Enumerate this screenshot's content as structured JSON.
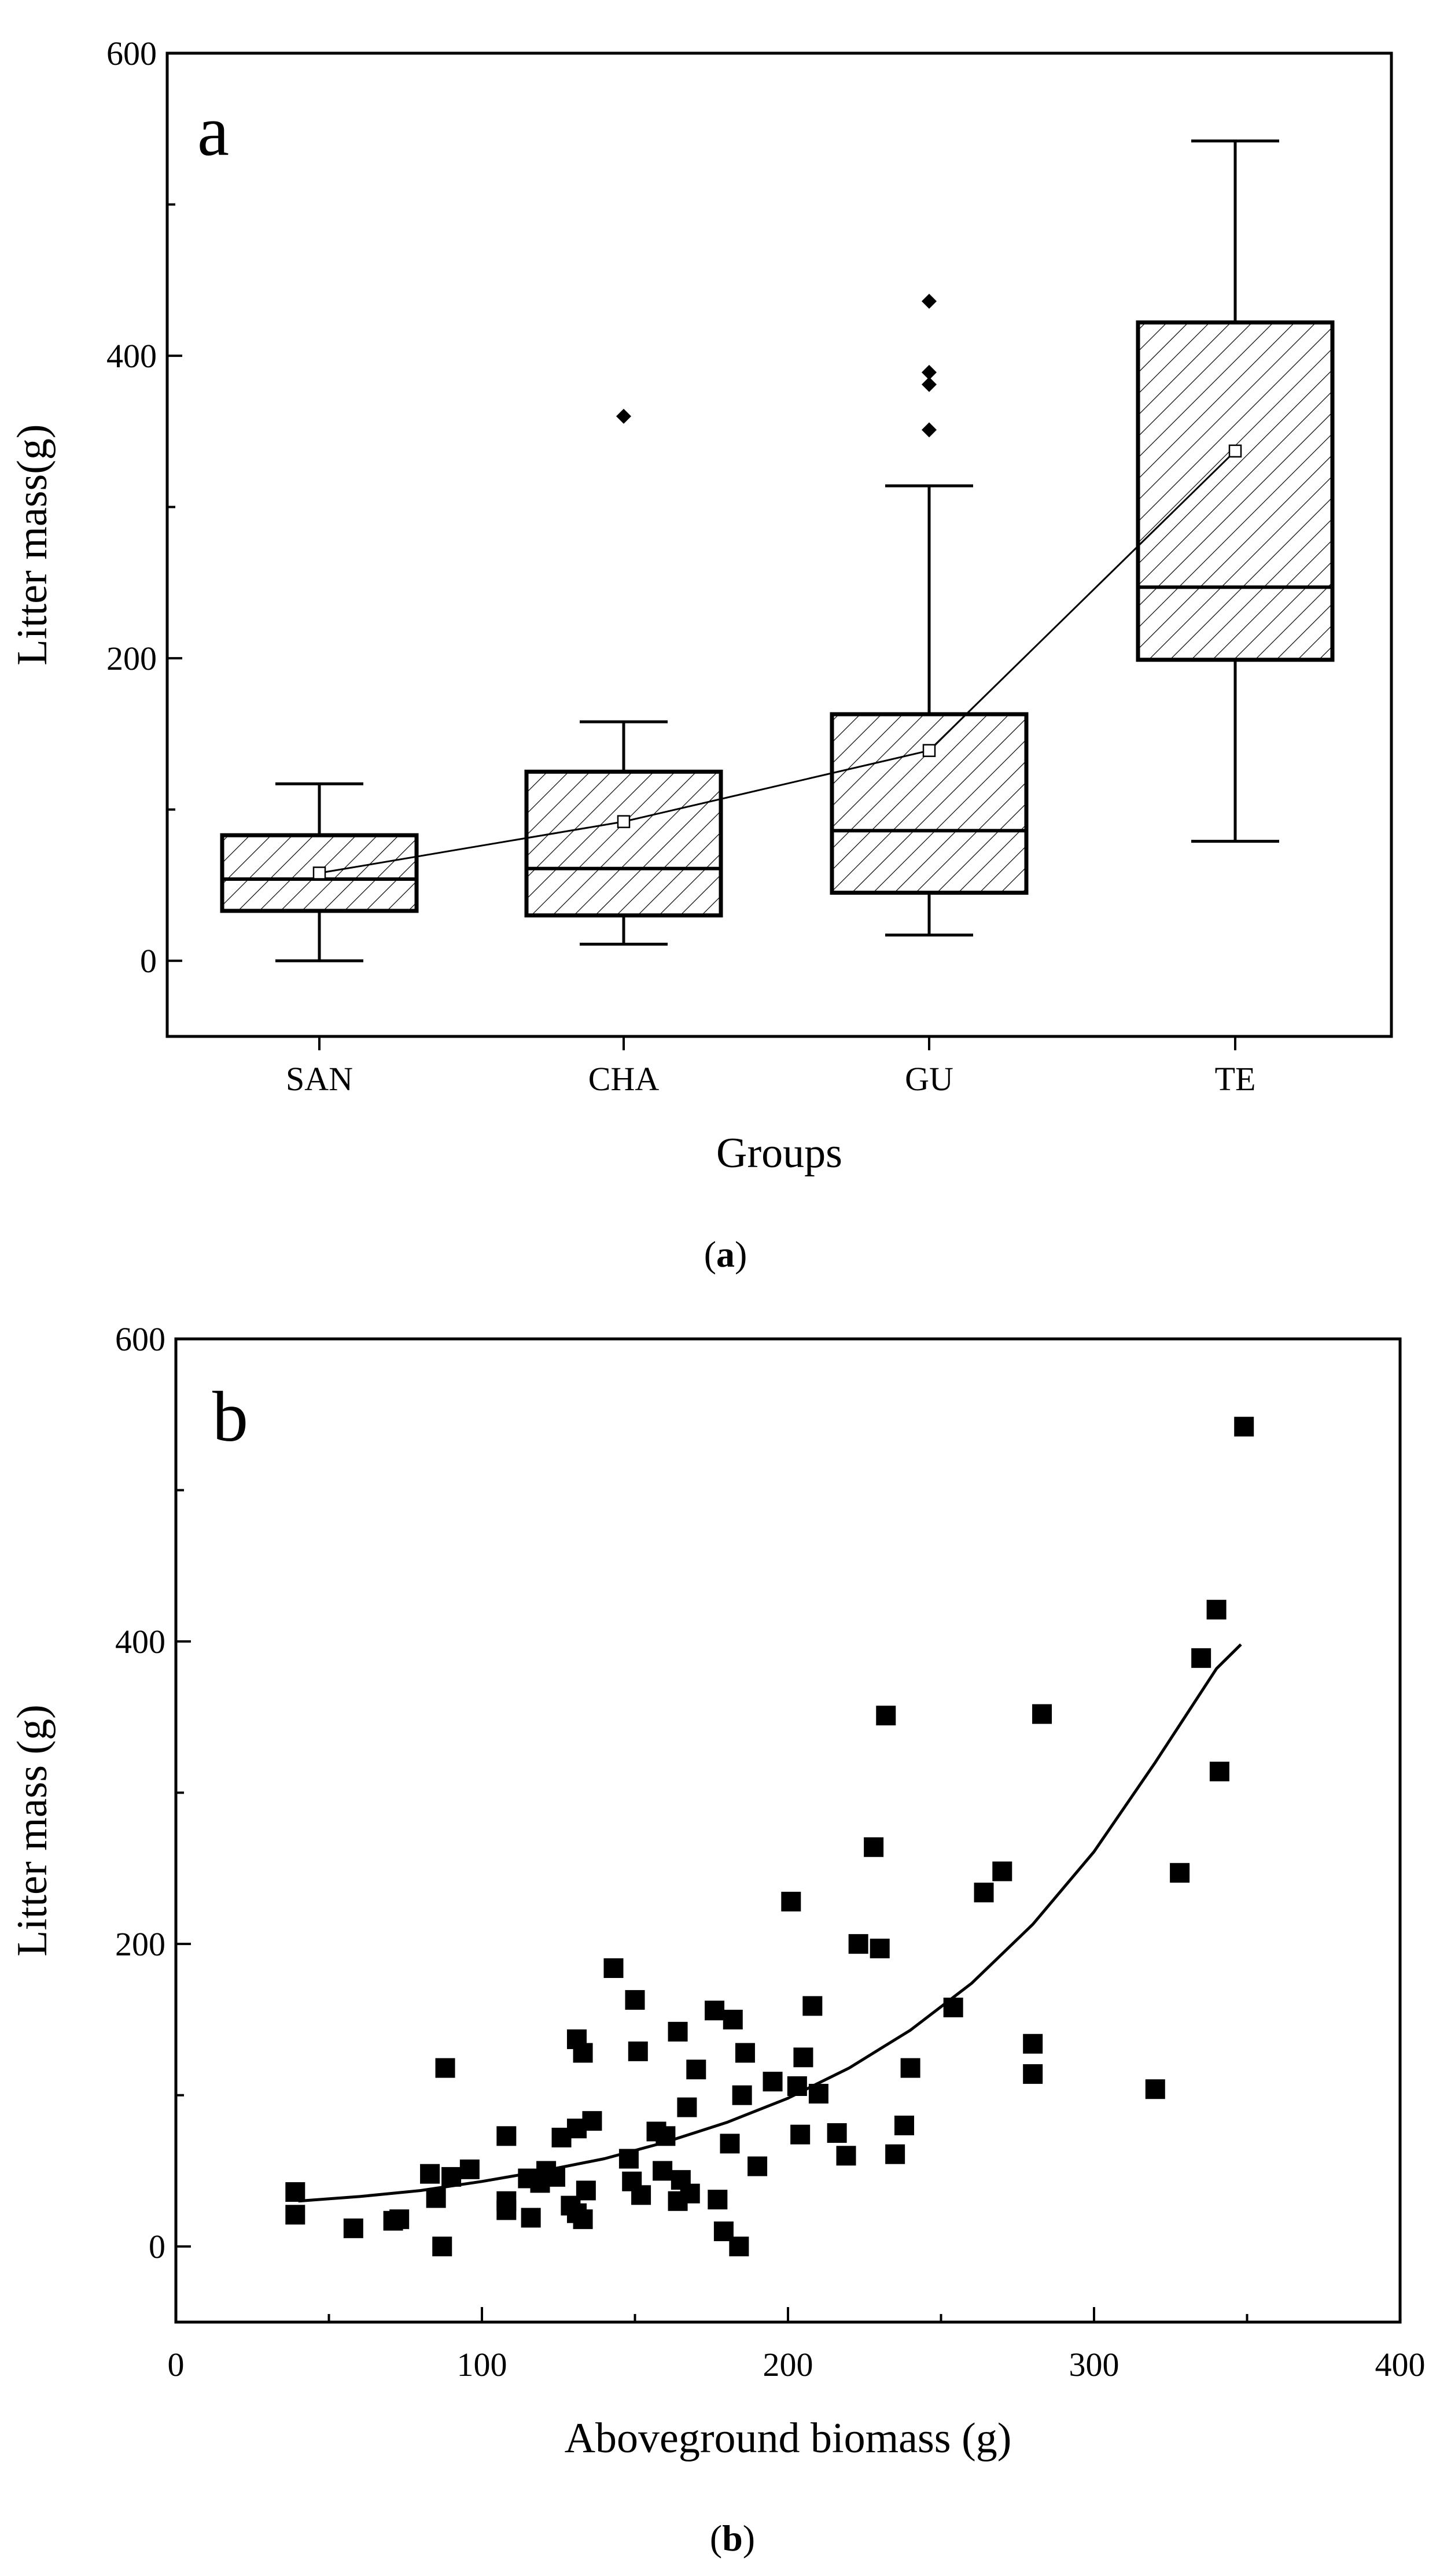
{
  "figure": {
    "caption_a": {
      "open": "(",
      "letter": "a",
      "close": ")"
    },
    "caption_b": {
      "open": "(",
      "letter": "b",
      "close": ")"
    }
  },
  "colors": {
    "ink": "#000000",
    "background": "#ffffff"
  },
  "chart_data": [
    {
      "type": "box",
      "panel_label": "a",
      "title": "",
      "xlabel": "Groups",
      "ylabel": "Litter mass(g)",
      "ylim": [
        -50,
        600
      ],
      "yticks": [
        0,
        200,
        400,
        600
      ],
      "yminor_ticks": [
        100,
        300,
        500
      ],
      "categories": [
        "SAN",
        "CHA",
        "GU",
        "TE"
      ],
      "boxes": [
        {
          "name": "SAN",
          "whisker_low": 0,
          "q1": 33,
          "median": 54,
          "q3": 83,
          "whisker_high": 117,
          "mean": 58,
          "outliers": []
        },
        {
          "name": "CHA",
          "whisker_low": 11,
          "q1": 30,
          "median": 61,
          "q3": 125,
          "whisker_high": 158,
          "mean": 92,
          "outliers": [
            360
          ]
        },
        {
          "name": "GU",
          "whisker_low": 17,
          "q1": 45,
          "median": 86,
          "q3": 163,
          "whisker_high": 314,
          "mean": 139,
          "outliers": [
            351,
            381,
            389,
            436
          ]
        },
        {
          "name": "TE",
          "whisker_low": 79,
          "q1": 199,
          "median": 247,
          "q3": 422,
          "whisker_high": 542,
          "mean": 337,
          "outliers": []
        }
      ],
      "mean_line": true,
      "box_fill": "hatched"
    },
    {
      "type": "scatter",
      "panel_label": "b",
      "title": "",
      "xlabel": "Aboveground biomass (g)",
      "ylabel": "Litter mass (g)",
      "xlim": [
        0,
        400
      ],
      "ylim": [
        -50,
        600
      ],
      "xticks": [
        0,
        100,
        200,
        300,
        400
      ],
      "xminor_ticks": [
        50,
        150,
        250,
        350
      ],
      "yticks": [
        0,
        200,
        400,
        600
      ],
      "yminor_ticks": [
        100,
        300,
        500
      ],
      "points": [
        [
          39,
          36
        ],
        [
          39,
          21
        ],
        [
          58,
          12
        ],
        [
          71,
          17
        ],
        [
          73,
          18
        ],
        [
          83,
          48
        ],
        [
          85,
          32
        ],
        [
          87,
          0
        ],
        [
          88,
          118
        ],
        [
          90,
          46
        ],
        [
          96,
          51
        ],
        [
          108,
          24
        ],
        [
          108,
          30
        ],
        [
          108,
          73
        ],
        [
          115,
          45
        ],
        [
          116,
          19
        ],
        [
          119,
          42
        ],
        [
          121,
          50
        ],
        [
          124,
          46
        ],
        [
          126,
          72
        ],
        [
          129,
          27
        ],
        [
          131,
          78
        ],
        [
          131,
          137
        ],
        [
          131,
          22
        ],
        [
          133,
          128
        ],
        [
          133,
          18
        ],
        [
          134,
          37
        ],
        [
          136,
          83
        ],
        [
          143,
          184
        ],
        [
          148,
          58
        ],
        [
          149,
          43
        ],
        [
          150,
          163
        ],
        [
          151,
          129
        ],
        [
          152,
          34
        ],
        [
          157,
          76
        ],
        [
          159,
          50
        ],
        [
          160,
          73
        ],
        [
          164,
          142
        ],
        [
          164,
          30
        ],
        [
          165,
          44
        ],
        [
          167,
          92
        ],
        [
          168,
          35
        ],
        [
          170,
          117
        ],
        [
          176,
          156
        ],
        [
          177,
          31
        ],
        [
          179,
          10
        ],
        [
          181,
          68
        ],
        [
          182,
          150
        ],
        [
          184,
          0
        ],
        [
          185,
          100
        ],
        [
          186,
          128
        ],
        [
          190,
          53
        ],
        [
          195,
          109
        ],
        [
          201,
          228
        ],
        [
          203,
          106
        ],
        [
          204,
          74
        ],
        [
          205,
          125
        ],
        [
          208,
          159
        ],
        [
          210,
          101
        ],
        [
          216,
          75
        ],
        [
          219,
          60
        ],
        [
          223,
          200
        ],
        [
          228,
          264
        ],
        [
          230,
          197
        ],
        [
          232,
          351
        ],
        [
          235,
          61
        ],
        [
          238,
          80
        ],
        [
          240,
          118
        ],
        [
          254,
          158
        ],
        [
          264,
          234
        ],
        [
          270,
          248
        ],
        [
          280,
          134
        ],
        [
          280,
          114
        ],
        [
          283,
          352
        ],
        [
          320,
          104
        ],
        [
          328,
          247
        ],
        [
          335,
          389
        ],
        [
          340,
          421
        ],
        [
          341,
          314
        ],
        [
          349,
          542
        ]
      ],
      "fit": {
        "kind": "exponential",
        "x": [
          40,
          60,
          80,
          100,
          120,
          140,
          160,
          180,
          200,
          220,
          240,
          260,
          280,
          300,
          320,
          340,
          348
        ],
        "y": [
          30,
          33,
          37,
          43,
          50,
          58,
          69,
          82,
          98,
          118,
          143,
          174,
          213,
          261,
          320,
          382,
          398
        ]
      }
    }
  ]
}
